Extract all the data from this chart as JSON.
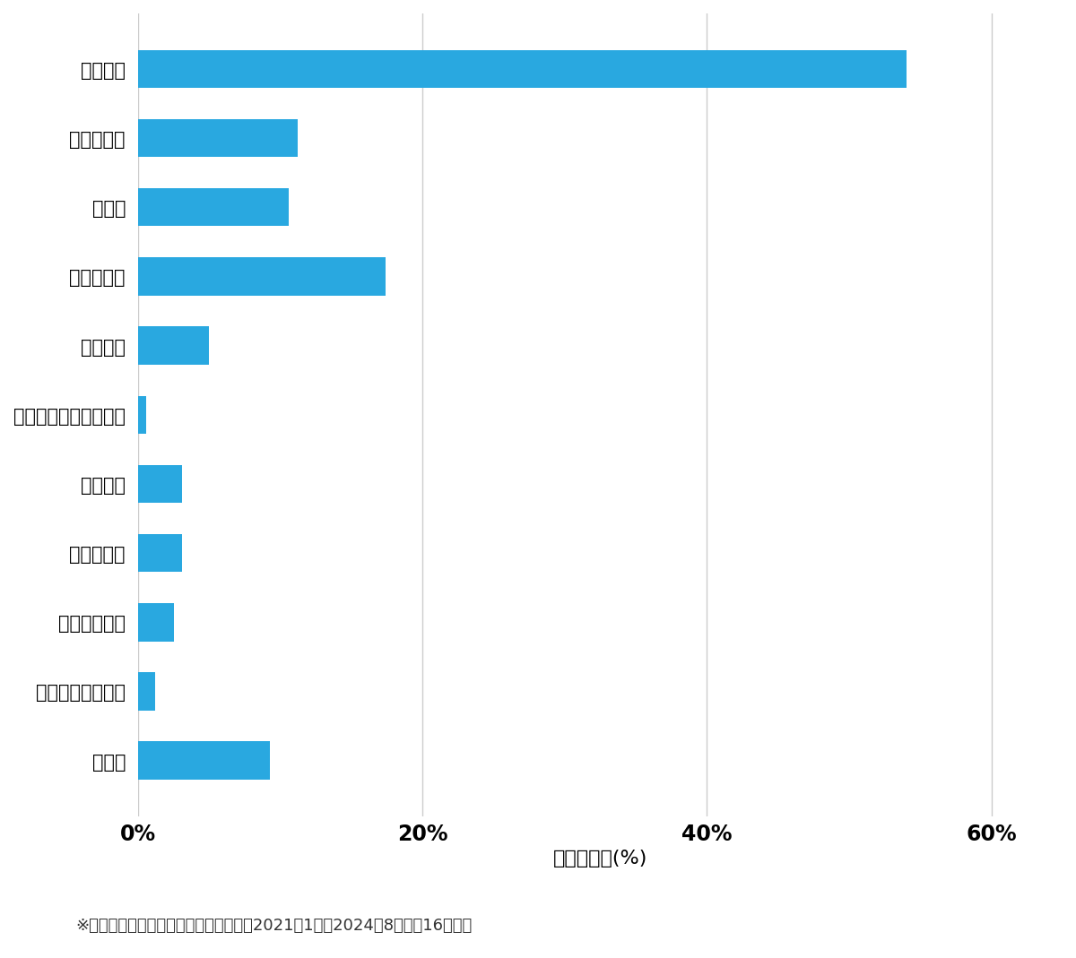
{
  "categories": [
    "その他",
    "スーツケース開鍵",
    "その他鍵作成",
    "玄関鍵作成",
    "金庫開鍵",
    "イモビ付国産車鍵作成",
    "車鍵作成",
    "その他開鍵",
    "車開鍵",
    "玄関鍵交換",
    "玄関開鍵"
  ],
  "values": [
    9.3,
    1.2,
    2.5,
    3.1,
    3.1,
    0.6,
    5.0,
    17.4,
    10.6,
    11.2,
    54.0
  ],
  "bar_color": "#29a8e0",
  "xlabel": "件数の割合(%)",
  "xlim": [
    0,
    65
  ],
  "xticks": [
    0,
    20,
    40,
    60
  ],
  "xticklabels": [
    "0%",
    "20%",
    "40%",
    "60%"
  ],
  "footnote": "※弊社受付の案件を対象に集計（期間：2021年1月～2024年8月、記16１件）",
  "background_color": "#ffffff",
  "bar_height": 0.55,
  "gridline_color": "#cccccc",
  "label_fontsize": 15,
  "tick_fontsize": 17,
  "xlabel_fontsize": 16,
  "footnote_fontsize": 13
}
